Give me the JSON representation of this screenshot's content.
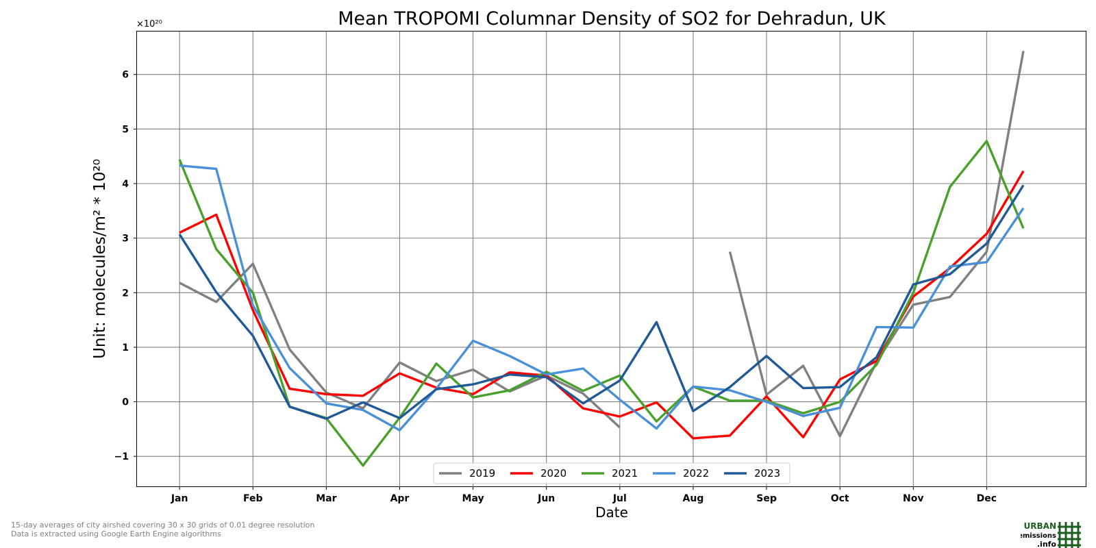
{
  "chart_data": {
    "type": "line",
    "title": "Mean TROPOMI Columnar Density of SO2 for Dehradun, UK",
    "xlabel": "Date",
    "ylabel": "Unit: molecules/m² * 10²⁰",
    "y_multiplier": "×10²⁰",
    "x_tick_labels": [
      "Jan",
      "Feb",
      "Mar",
      "Apr",
      "May",
      "Jun",
      "Jul",
      "Aug",
      "Sep",
      "Oct",
      "Nov",
      "Dec"
    ],
    "y_tick_labels": [
      "−1",
      "0",
      "1",
      "2",
      "3",
      "4",
      "5",
      "6"
    ],
    "y_ticks": [
      -1,
      0,
      1,
      2,
      3,
      4,
      5,
      6
    ],
    "ylim": [
      -1.55,
      6.8
    ],
    "grid": true,
    "legend_position": "bottom-center",
    "x_points": [
      1,
      1.5,
      2,
      2.5,
      3,
      3.5,
      4,
      4.5,
      5,
      5.5,
      6,
      6.5,
      7,
      7.5,
      8,
      8.5,
      9,
      9.5,
      10,
      10.5,
      11,
      11.5,
      12,
      12.5
    ],
    "series": [
      {
        "name": "2019",
        "color": "#808080",
        "values": [
          2.18,
          1.83,
          2.53,
          0.96,
          0.17,
          -0.12,
          0.72,
          0.38,
          0.59,
          0.19,
          0.48,
          0.15,
          -0.47,
          null,
          null,
          2.75,
          0.13,
          0.66,
          -0.63,
          0.73,
          1.78,
          1.92,
          2.75,
          6.43
        ]
      },
      {
        "name": "2020",
        "color": "#ff0000",
        "values": [
          3.1,
          3.43,
          1.68,
          0.24,
          0.14,
          0.11,
          0.52,
          0.26,
          0.14,
          0.54,
          0.48,
          -0.12,
          -0.27,
          -0.01,
          -0.67,
          -0.62,
          0.1,
          -0.65,
          0.41,
          0.75,
          1.93,
          2.45,
          3.08,
          4.23
        ]
      },
      {
        "name": "2021",
        "color": "#4aa02c",
        "values": [
          4.44,
          2.8,
          2.0,
          -0.09,
          -0.3,
          -1.17,
          -0.29,
          0.7,
          0.08,
          0.21,
          0.55,
          0.2,
          0.48,
          -0.36,
          0.28,
          0.02,
          0.02,
          -0.21,
          0.0,
          0.68,
          2.0,
          3.94,
          4.78,
          3.18
        ]
      },
      {
        "name": "2022",
        "color": "#4a90d9",
        "values": [
          4.33,
          4.27,
          1.77,
          0.62,
          -0.03,
          -0.15,
          -0.52,
          0.24,
          1.12,
          0.84,
          0.5,
          0.61,
          0.04,
          -0.49,
          0.28,
          0.21,
          0.0,
          -0.26,
          -0.11,
          1.37,
          1.36,
          2.48,
          2.56,
          3.55
        ]
      },
      {
        "name": "2023",
        "color": "#1f5a96",
        "values": [
          3.07,
          2.01,
          1.21,
          -0.09,
          -0.31,
          -0.01,
          -0.3,
          0.23,
          0.32,
          0.5,
          0.45,
          -0.03,
          0.39,
          1.46,
          -0.17,
          0.27,
          0.84,
          0.25,
          0.27,
          0.82,
          2.15,
          2.34,
          2.9,
          3.97
        ]
      }
    ]
  },
  "footnote": {
    "line1": "15-day averages of city airshed covering 30 x 30 grids of 0.01 degree resolution",
    "line2": "Data is extracted using Google Earth Engine algorithms"
  },
  "logo": {
    "line1": "URBAN",
    "line2": "emissions",
    "line3": ".info",
    "color": "#1d5e20"
  }
}
